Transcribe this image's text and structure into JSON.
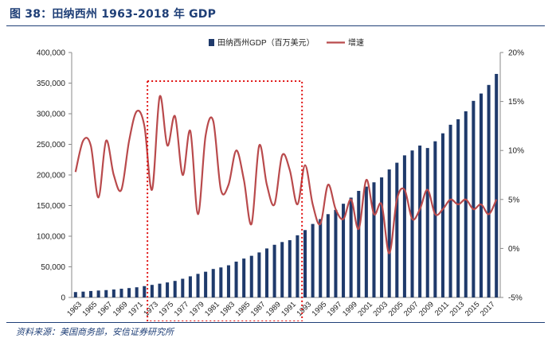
{
  "figure": {
    "title": "图 38：田纳西州 1963-2018 年 GDP",
    "source": "资料来源：美国商务部，安信证券研究所"
  },
  "colors": {
    "bar": "#1f3a6b",
    "line": "#b94a4c",
    "highlight": "#e01010",
    "title": "#1f3f77"
  },
  "chart_data": {
    "type": "bar",
    "title": "",
    "years": [
      1963,
      1964,
      1965,
      1966,
      1967,
      1968,
      1969,
      1970,
      1971,
      1972,
      1973,
      1974,
      1975,
      1976,
      1977,
      1978,
      1979,
      1980,
      1981,
      1982,
      1983,
      1984,
      1985,
      1986,
      1987,
      1988,
      1989,
      1990,
      1991,
      1992,
      1993,
      1994,
      1995,
      1996,
      1997,
      1998,
      1999,
      2000,
      2001,
      2002,
      2003,
      2004,
      2005,
      2006,
      2007,
      2008,
      2009,
      2010,
      2011,
      2012,
      2013,
      2014,
      2015,
      2016,
      2017,
      2018
    ],
    "x_tick_labels": [
      "1963",
      "1965",
      "1967",
      "1969",
      "1971",
      "1973",
      "1975",
      "1977",
      "1979",
      "1981",
      "1983",
      "1985",
      "1987",
      "1989",
      "1991",
      "1993",
      "1995",
      "1997",
      "1999",
      "2001",
      "2003",
      "2005",
      "2007",
      "2009",
      "2011",
      "2013",
      "2015",
      "2017"
    ],
    "series": [
      {
        "name": "田纳西州GDP（百万美元）",
        "type": "bar",
        "axis": "left",
        "values": [
          8800,
          9500,
          10500,
          11300,
          12000,
          13000,
          14200,
          15300,
          16600,
          18500,
          20500,
          22500,
          24500,
          27000,
          30500,
          34500,
          38500,
          42000,
          46500,
          49000,
          52500,
          58500,
          63500,
          68000,
          73500,
          80000,
          86000,
          90500,
          93500,
          101500,
          110000,
          120000,
          128000,
          136000,
          143000,
          153000,
          163000,
          174000,
          181000,
          188000,
          196000,
          209000,
          220000,
          232000,
          240000,
          248000,
          244000,
          255000,
          268000,
          282000,
          291000,
          304000,
          321000,
          333000,
          347000,
          365000
        ]
      },
      {
        "name": "增速",
        "type": "line",
        "axis": "right",
        "values": [
          7.8,
          11.0,
          10.5,
          5.2,
          11.0,
          7.5,
          6.0,
          11.0,
          14.0,
          12.5,
          6.0,
          15.5,
          10.5,
          13.5,
          7.5,
          12.0,
          3.5,
          11.5,
          13.0,
          6.0,
          6.5,
          10.0,
          7.0,
          2.5,
          10.5,
          6.5,
          4.5,
          9.5,
          8.0,
          4.5,
          8.5,
          4.5,
          2.5,
          6.5,
          4.0,
          3.0,
          5.0,
          2.0,
          7.0,
          3.5,
          4.5,
          -0.5,
          5.0,
          6.0,
          3.0,
          4.0,
          6.0,
          3.5,
          4.0,
          5.0,
          4.5,
          5.0,
          4.0,
          4.5,
          3.5,
          5.0
        ]
      }
    ],
    "left_axis": {
      "min": 0,
      "max": 400000,
      "tick_labels": [
        "0",
        "50,000",
        "100,000",
        "150,000",
        "200,000",
        "250,000",
        "300,000",
        "350,000",
        "400,000"
      ]
    },
    "right_axis": {
      "min": -5,
      "max": 20,
      "tick_labels": [
        "-5%",
        "0%",
        "5%",
        "10%",
        "15%",
        "20%"
      ]
    },
    "highlight_range": [
      1973,
      1992
    ],
    "legend": {
      "position": "top"
    },
    "grid": false
  }
}
